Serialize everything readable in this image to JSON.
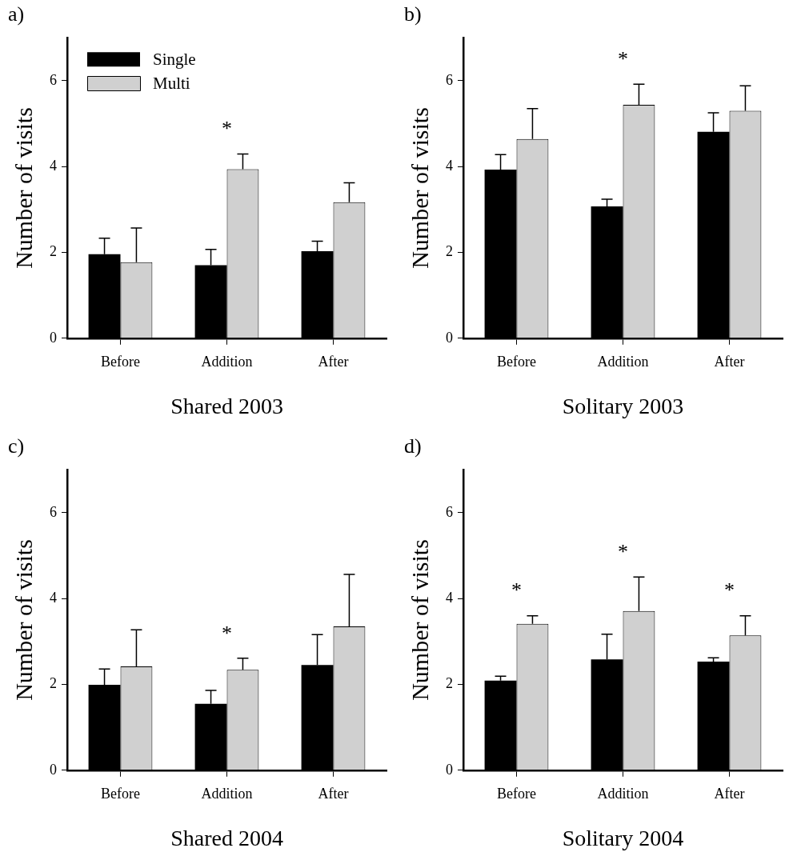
{
  "chart_data": [
    {
      "type": "bar",
      "title": "a)",
      "xlabel": "Shared 2003",
      "ylabel": "Number of visits",
      "categories": [
        "Before",
        "Addition",
        "After"
      ],
      "ylim": [
        0,
        7
      ],
      "yticks": [
        0,
        2,
        4,
        6
      ],
      "legend": "top left",
      "series": [
        {
          "name": "Single",
          "color": "#000000",
          "values": [
            1.96,
            1.7,
            2.03
          ],
          "errors": [
            [
              1.96,
              2.33
            ],
            [
              1.7,
              2.07
            ],
            [
              2.03,
              2.26
            ]
          ]
        },
        {
          "name": "Multi",
          "color": "#d0d0d0",
          "values": [
            1.77,
            3.94,
            3.17
          ],
          "errors": [
            [
              1.77,
              2.57
            ],
            [
              3.94,
              4.29
            ],
            [
              3.17,
              3.62
            ]
          ]
        }
      ],
      "annotations": [
        "*"
      ]
    },
    {
      "type": "bar",
      "title": "b)",
      "xlabel": "Solitary 2003",
      "ylabel": "Number of visits",
      "categories": [
        "Before",
        "Addition",
        "After"
      ],
      "ylim": [
        0,
        7
      ],
      "yticks": [
        0,
        2,
        4,
        6
      ],
      "series": [
        {
          "color": "#000000",
          "values": [
            3.93,
            3.07,
            4.81
          ],
          "errors": [
            [
              3.93,
              4.28
            ],
            [
              3.07,
              3.24
            ],
            [
              4.81,
              5.25
            ]
          ]
        },
        {
          "color": "#d0d0d0",
          "values": [
            4.64,
            5.44,
            5.3
          ],
          "errors": [
            [
              4.64,
              5.35
            ],
            [
              5.44,
              5.92
            ],
            [
              5.3,
              5.88
            ]
          ]
        }
      ],
      "annotations": [
        "*"
      ]
    },
    {
      "type": "bar",
      "title": "c)",
      "xlabel": "Shared 2004",
      "ylabel": "Number of visits",
      "categories": [
        "Before",
        "Addition",
        "After"
      ],
      "ylim": [
        0,
        7
      ],
      "yticks": [
        0,
        2,
        4,
        6
      ],
      "series": [
        {
          "color": "#000000",
          "values": [
            1.99,
            1.55,
            2.45
          ],
          "errors": [
            [
              1.99,
              2.36
            ],
            [
              1.55,
              1.86
            ],
            [
              2.45,
              3.16
            ]
          ]
        },
        {
          "color": "#d0d0d0",
          "values": [
            2.42,
            2.34,
            3.35
          ],
          "errors": [
            [
              2.42,
              3.27
            ],
            [
              2.34,
              2.61
            ],
            [
              3.35,
              4.56
            ]
          ]
        }
      ],
      "annotations": [
        "*"
      ]
    },
    {
      "type": "bar",
      "title": "d)",
      "xlabel": "Solitary 2004",
      "ylabel": "Number of visits",
      "categories": [
        "Before",
        "Addition",
        "After"
      ],
      "ylim": [
        0,
        7
      ],
      "yticks": [
        0,
        2,
        4,
        6
      ],
      "series": [
        {
          "color": "#000000",
          "values": [
            2.09,
            2.58,
            2.53
          ],
          "errors": [
            [
              2.09,
              2.19
            ],
            [
              2.58,
              3.17
            ],
            [
              2.53,
              2.62
            ]
          ]
        },
        {
          "color": "#d0d0d0",
          "values": [
            3.41,
            3.71,
            3.14
          ],
          "errors": [
            [
              3.41,
              3.6
            ],
            [
              3.71,
              4.5
            ],
            [
              3.14,
              3.6
            ]
          ]
        }
      ],
      "annotations": [
        "*",
        "*",
        "*"
      ]
    }
  ]
}
